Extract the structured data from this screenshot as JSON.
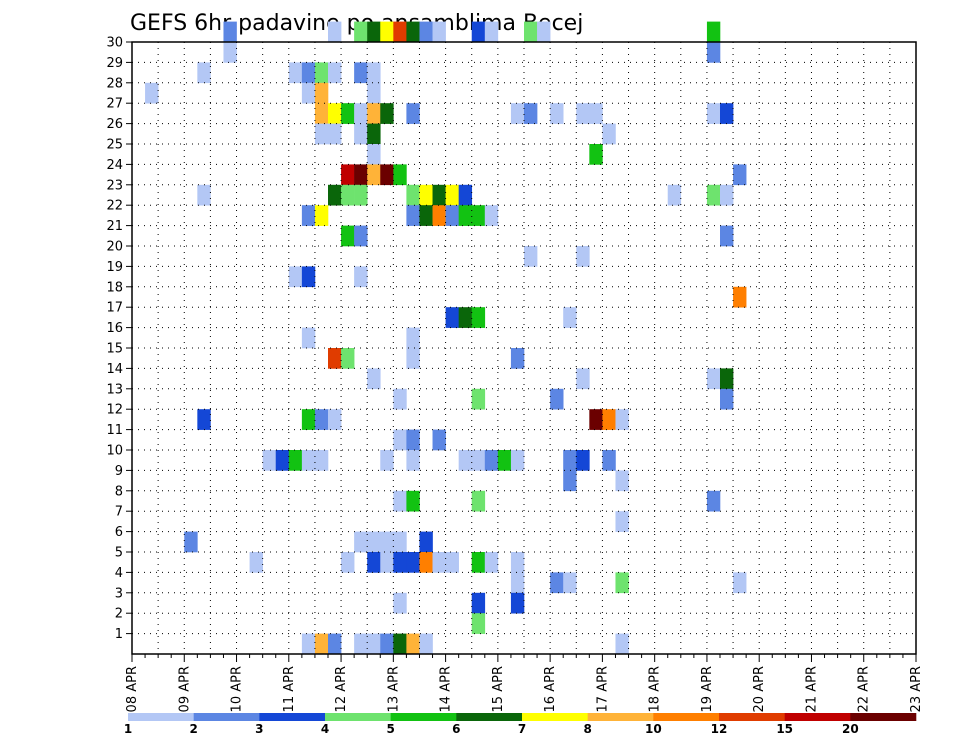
{
  "chart_data": {
    "type": "heatmap",
    "title": "GEFS 6hr padavine po ansamblima Becej",
    "xlabel": "",
    "ylabel": "",
    "x_ticks": [
      "08 APR",
      "09 APR",
      "10 APR",
      "11 APR",
      "12 APR",
      "13 APR",
      "14 APR",
      "15 APR",
      "16 APR",
      "17 APR",
      "18 APR",
      "19 APR",
      "20 APR",
      "21 APR",
      "22 APR",
      "23 APR"
    ],
    "x_range": [
      "08 APR 00Z",
      "23 APR 00Z"
    ],
    "x_step_hours": 6,
    "y_ticks": [
      1,
      2,
      3,
      4,
      5,
      6,
      7,
      8,
      9,
      10,
      11,
      12,
      13,
      14,
      15,
      16,
      17,
      18,
      19,
      20,
      21,
      22,
      23,
      24,
      25,
      26,
      27,
      28,
      29,
      30
    ],
    "y_range": [
      0,
      30
    ],
    "grid": true,
    "legend_position": "bottom",
    "color_levels": [
      1,
      2,
      3,
      4,
      5,
      6,
      7,
      8,
      10,
      12,
      15,
      20
    ],
    "colors": [
      "#b3c7f5",
      "#5c86e3",
      "#1447d6",
      "#6ee36e",
      "#12c212",
      "#0a660a",
      "#ffff00",
      "#ffb338",
      "#ff7f00",
      "#e03c00",
      "#c00000",
      "#6b0000"
    ],
    "legend_labels": [
      "1",
      "2",
      "3",
      "4",
      "5",
      "6",
      "7",
      "8",
      "10",
      "12",
      "15",
      "20"
    ],
    "cells": [
      [
        7,
        30,
        1
      ],
      [
        15,
        30,
        0
      ],
      [
        17,
        30,
        3
      ],
      [
        18,
        30,
        5
      ],
      [
        19,
        30,
        6
      ],
      [
        20,
        30,
        9
      ],
      [
        21,
        30,
        5
      ],
      [
        22,
        30,
        1
      ],
      [
        23,
        30,
        0
      ],
      [
        26,
        30,
        2
      ],
      [
        27,
        30,
        0
      ],
      [
        30,
        30,
        3
      ],
      [
        31,
        30,
        0
      ],
      [
        44,
        30,
        4
      ],
      [
        7,
        29,
        0
      ],
      [
        44,
        29,
        1
      ],
      [
        5,
        28,
        0
      ],
      [
        12,
        28,
        0
      ],
      [
        13,
        28,
        1
      ],
      [
        14,
        28,
        3
      ],
      [
        15,
        28,
        0
      ],
      [
        17,
        28,
        1
      ],
      [
        18,
        28,
        0
      ],
      [
        1,
        27,
        0
      ],
      [
        13,
        27,
        0
      ],
      [
        14,
        27,
        7
      ],
      [
        18,
        27,
        0
      ],
      [
        14,
        26,
        7
      ],
      [
        15,
        26,
        6
      ],
      [
        16,
        26,
        4
      ],
      [
        17,
        26,
        0
      ],
      [
        18,
        26,
        7
      ],
      [
        19,
        26,
        5
      ],
      [
        21,
        26,
        1
      ],
      [
        29,
        26,
        0
      ],
      [
        30,
        26,
        1
      ],
      [
        32,
        26,
        0
      ],
      [
        34,
        26,
        0
      ],
      [
        35,
        26,
        0
      ],
      [
        44,
        26,
        0
      ],
      [
        45,
        26,
        2
      ],
      [
        14,
        25,
        0
      ],
      [
        15,
        25,
        0
      ],
      [
        17,
        25,
        0
      ],
      [
        18,
        25,
        5
      ],
      [
        36,
        25,
        0
      ],
      [
        18,
        24,
        0
      ],
      [
        35,
        24,
        4
      ],
      [
        16,
        23,
        10
      ],
      [
        17,
        23,
        11
      ],
      [
        18,
        23,
        7
      ],
      [
        19,
        23,
        11
      ],
      [
        20,
        23,
        4
      ],
      [
        46,
        23,
        1
      ],
      [
        5,
        22,
        0
      ],
      [
        15,
        22,
        5
      ],
      [
        16,
        22,
        3
      ],
      [
        17,
        22,
        3
      ],
      [
        21,
        22,
        3
      ],
      [
        22,
        22,
        6
      ],
      [
        23,
        22,
        5
      ],
      [
        24,
        22,
        6
      ],
      [
        25,
        22,
        2
      ],
      [
        41,
        22,
        0
      ],
      [
        44,
        22,
        3
      ],
      [
        45,
        22,
        0
      ],
      [
        13,
        21,
        1
      ],
      [
        14,
        21,
        6
      ],
      [
        21,
        21,
        1
      ],
      [
        22,
        21,
        5
      ],
      [
        23,
        21,
        8
      ],
      [
        24,
        21,
        1
      ],
      [
        25,
        21,
        4
      ],
      [
        26,
        21,
        4
      ],
      [
        27,
        21,
        0
      ],
      [
        16,
        20,
        4
      ],
      [
        17,
        20,
        1
      ],
      [
        45,
        20,
        1
      ],
      [
        30,
        19,
        0
      ],
      [
        34,
        19,
        0
      ],
      [
        12,
        18,
        0
      ],
      [
        13,
        18,
        2
      ],
      [
        17,
        18,
        0
      ],
      [
        46,
        17,
        8
      ],
      [
        24,
        16,
        2
      ],
      [
        25,
        16,
        5
      ],
      [
        26,
        16,
        4
      ],
      [
        33,
        16,
        0
      ],
      [
        13,
        15,
        0
      ],
      [
        21,
        15,
        0
      ],
      [
        15,
        14,
        9
      ],
      [
        16,
        14,
        3
      ],
      [
        21,
        14,
        0
      ],
      [
        29,
        14,
        1
      ],
      [
        18,
        13,
        0
      ],
      [
        34,
        13,
        0
      ],
      [
        44,
        13,
        0
      ],
      [
        45,
        13,
        5
      ],
      [
        20,
        12,
        0
      ],
      [
        26,
        12,
        3
      ],
      [
        32,
        12,
        1
      ],
      [
        45,
        12,
        1
      ],
      [
        5,
        11,
        2
      ],
      [
        13,
        11,
        4
      ],
      [
        14,
        11,
        1
      ],
      [
        15,
        11,
        0
      ],
      [
        35,
        11,
        11
      ],
      [
        36,
        11,
        8
      ],
      [
        37,
        11,
        0
      ],
      [
        20,
        10,
        0
      ],
      [
        21,
        10,
        1
      ],
      [
        23,
        10,
        1
      ],
      [
        10,
        9,
        0
      ],
      [
        11,
        9,
        2
      ],
      [
        12,
        9,
        4
      ],
      [
        13,
        9,
        0
      ],
      [
        14,
        9,
        0
      ],
      [
        19,
        9,
        0
      ],
      [
        21,
        9,
        0
      ],
      [
        25,
        9,
        0
      ],
      [
        26,
        9,
        0
      ],
      [
        27,
        9,
        1
      ],
      [
        28,
        9,
        4
      ],
      [
        29,
        9,
        0
      ],
      [
        33,
        9,
        1
      ],
      [
        34,
        9,
        2
      ],
      [
        36,
        9,
        1
      ],
      [
        33,
        8,
        1
      ],
      [
        37,
        8,
        0
      ],
      [
        20,
        7,
        0
      ],
      [
        21,
        7,
        4
      ],
      [
        26,
        7,
        3
      ],
      [
        44,
        7,
        1
      ],
      [
        37,
        6,
        0
      ],
      [
        4,
        5,
        1
      ],
      [
        17,
        5,
        0
      ],
      [
        18,
        5,
        0
      ],
      [
        19,
        5,
        0
      ],
      [
        20,
        5,
        0
      ],
      [
        22,
        5,
        2
      ],
      [
        9,
        4,
        0
      ],
      [
        16,
        4,
        0
      ],
      [
        18,
        4,
        2
      ],
      [
        19,
        4,
        0
      ],
      [
        20,
        4,
        2
      ],
      [
        21,
        4,
        2
      ],
      [
        22,
        4,
        8
      ],
      [
        23,
        4,
        0
      ],
      [
        24,
        4,
        0
      ],
      [
        26,
        4,
        4
      ],
      [
        27,
        4,
        0
      ],
      [
        29,
        4,
        0
      ],
      [
        29,
        3,
        0
      ],
      [
        32,
        3,
        1
      ],
      [
        33,
        3,
        0
      ],
      [
        37,
        3,
        3
      ],
      [
        46,
        3,
        0
      ],
      [
        20,
        2,
        0
      ],
      [
        26,
        2,
        2
      ],
      [
        29,
        2,
        2
      ],
      [
        26,
        1,
        3
      ],
      [
        13,
        0,
        0
      ],
      [
        14,
        0,
        7
      ],
      [
        15,
        0,
        1
      ],
      [
        17,
        0,
        0
      ],
      [
        18,
        0,
        0
      ],
      [
        19,
        0,
        1
      ],
      [
        20,
        0,
        5
      ],
      [
        21,
        0,
        7
      ],
      [
        22,
        0,
        0
      ],
      [
        37,
        0,
        0
      ]
    ]
  }
}
